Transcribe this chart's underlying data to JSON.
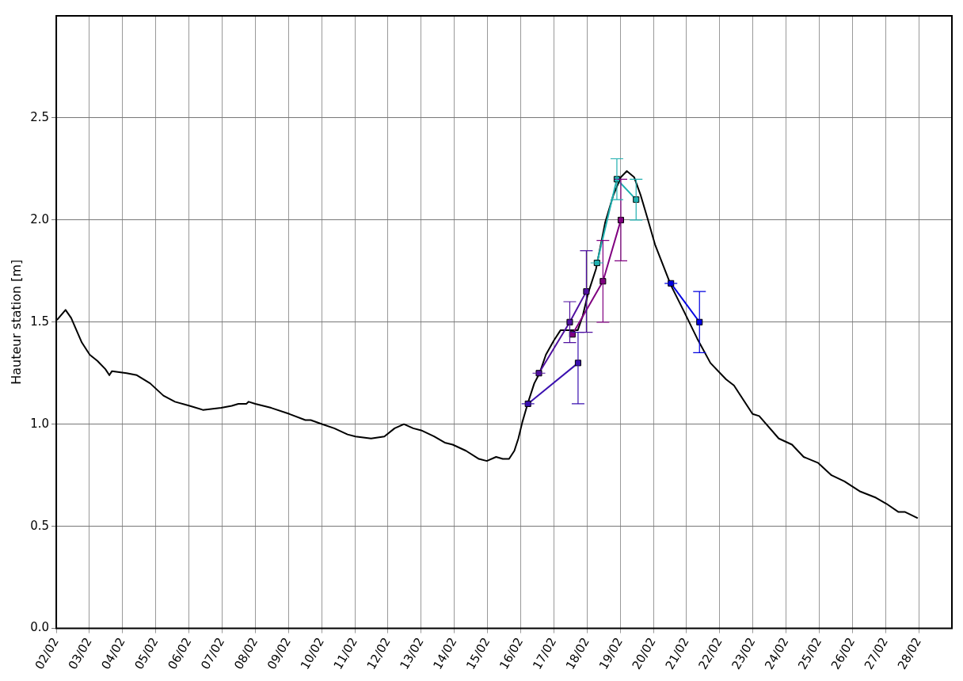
{
  "chart_data": {
    "type": "line",
    "ylabel": "Hauteur station [m]",
    "xlim": [
      "--02-02",
      "--03-01"
    ],
    "ylim": [
      0,
      3
    ],
    "xticks": [
      {
        "value": "--02-02",
        "label": "02/02"
      },
      {
        "value": "--02-03",
        "label": "03/02"
      },
      {
        "value": "--02-04",
        "label": "04/02"
      },
      {
        "value": "--02-05",
        "label": "05/02"
      },
      {
        "value": "--02-06",
        "label": "06/02"
      },
      {
        "value": "--02-07",
        "label": "07/02"
      },
      {
        "value": "--02-08",
        "label": "08/02"
      },
      {
        "value": "--02-09",
        "label": "09/02"
      },
      {
        "value": "--02-10",
        "label": "10/02"
      },
      {
        "value": "--02-11",
        "label": "11/02"
      },
      {
        "value": "--02-12",
        "label": "12/02"
      },
      {
        "value": "--02-13",
        "label": "13/02"
      },
      {
        "value": "--02-14",
        "label": "14/02"
      },
      {
        "value": "--02-15",
        "label": "15/02"
      },
      {
        "value": "--02-16",
        "label": "16/02"
      },
      {
        "value": "--02-17",
        "label": "17/02"
      },
      {
        "value": "--02-18",
        "label": "18/02"
      },
      {
        "value": "--02-19",
        "label": "19/02"
      },
      {
        "value": "--02-20",
        "label": "20/02"
      },
      {
        "value": "--02-21",
        "label": "21/02"
      },
      {
        "value": "--02-22",
        "label": "22/02"
      },
      {
        "value": "--02-23",
        "label": "23/02"
      },
      {
        "value": "--02-24",
        "label": "24/02"
      },
      {
        "value": "--02-25",
        "label": "25/02"
      },
      {
        "value": "--02-26",
        "label": "26/02"
      },
      {
        "value": "--02-27",
        "label": "27/02"
      },
      {
        "value": "--02-28",
        "label": "28/02"
      }
    ],
    "yticks": [
      {
        "value": 0,
        "label": "0.0"
      },
      {
        "value": 0.5,
        "label": "0.5"
      },
      {
        "value": 1,
        "label": "1.0"
      },
      {
        "value": 1.5,
        "label": "1.5"
      },
      {
        "value": 2,
        "label": "2.0"
      },
      {
        "value": 2.5,
        "label": "2.5"
      }
    ],
    "grid": true,
    "line_style": "solid",
    "series": [
      {
        "color": "#000000",
        "marker": "none",
        "x": [
          "--02-02T00:29",
          "--02-02T06:43",
          "--02-02T10:48",
          "--02-02T14:38",
          "--02-02T18:29",
          "--02-03T00:14",
          "--02-03T05:46",
          "--02-03T11:31",
          "--02-03T14:24",
          "--02-03T16:19",
          "--02-04T02:53",
          "--02-04T10:19",
          "--02-04T19:55",
          "--02-05T05:31",
          "--02-05T13:55",
          "--02-06T00:29",
          "--02-06T10:05",
          "--02-06T23:17",
          "--02-07T06:58",
          "--02-07T11:46",
          "--02-07T17:31",
          "--02-07T19:12",
          "--02-08T00:00",
          "--02-08T11:31",
          "--02-09T00:43",
          "--02-09T12:14",
          "--02-09T16:05",
          "--02-10T00:29",
          "--02-10T09:07",
          "--02-10T18:43",
          "--02-11T00:29",
          "--02-11T11:46",
          "--02-11T21:22",
          "--02-12T04:48",
          "--02-12T11:31",
          "--02-12T18:14",
          "--02-13T00:00",
          "--02-13T09:22",
          "--02-13T17:02",
          "--02-13T22:48",
          "--02-14T08:24",
          "--02-14T17:46",
          "--02-14T23:31",
          "--02-15T06:14",
          "--02-15T11:02",
          "--02-15T15:36",
          "--02-15T19:26",
          "--02-15T22:19",
          "--02-16T01:12",
          "--02-16T05:02",
          "--02-16T09:50",
          "--02-16T13:41",
          "--02-16T18:14",
          "--02-17T00:00",
          "--02-17T04:48",
          "--02-17T09:36",
          "--02-17T13:26",
          "--02-17T17:17",
          "--02-17T20:53",
          "--02-18T00:43",
          "--02-18T06:29",
          "--02-18T13:12",
          "--02-18T18:58",
          "--02-19T00:29",
          "--02-19T04:48",
          "--02-19T10:05",
          "--02-19T14:53",
          "--02-19T19:41",
          "--02-20T01:12",
          "--02-20T06:58",
          "--02-20T12:43",
          "--02-20T22:19",
          "--02-21T07:41",
          "--02-21T17:17",
          "--02-22T04:34",
          "--02-22T10:19",
          "--02-22T23:46",
          "--02-23T04:34",
          "--02-23T18:43",
          "--02-24T04:19",
          "--02-24T12:43",
          "--02-24T23:17",
          "--02-25T08:53",
          "--02-25T18:14",
          "--02-26T05:46",
          "--02-26T17:02",
          "--02-27T00:43",
          "--02-27T09:22",
          "--02-27T14:10",
          "--02-27T23:17"
        ],
        "values": [
          1.51,
          1.56,
          1.52,
          1.46,
          1.4,
          1.34,
          1.31,
          1.27,
          1.24,
          1.26,
          1.25,
          1.24,
          1.2,
          1.14,
          1.11,
          1.09,
          1.07,
          1.08,
          1.09,
          1.1,
          1.1,
          1.11,
          1.1,
          1.08,
          1.05,
          1.02,
          1.02,
          1,
          0.98,
          0.95,
          0.94,
          0.93,
          0.94,
          0.98,
          1,
          0.98,
          0.97,
          0.94,
          0.91,
          0.9,
          0.87,
          0.83,
          0.82,
          0.84,
          0.83,
          0.83,
          0.87,
          0.93,
          1.01,
          1.1,
          1.2,
          1.25,
          1.34,
          1.41,
          1.46,
          1.46,
          1.46,
          1.46,
          1.53,
          1.64,
          1.76,
          1.99,
          2.12,
          2.21,
          2.24,
          2.21,
          2.12,
          2.01,
          1.88,
          1.78,
          1.68,
          1.55,
          1.42,
          1.3,
          1.22,
          1.19,
          1.05,
          1.04,
          0.93,
          0.9,
          0.84,
          0.81,
          0.75,
          0.72,
          0.67,
          0.64,
          0.61,
          0.57,
          0.57,
          0.54
        ]
      },
      {
        "color": "#3a10b0",
        "marker": "square",
        "x": [
          "--02-16T05:17",
          "--02-17T17:31"
        ],
        "values": [
          1.1,
          1.3
        ],
        "errors": [
          0,
          [
            1.1,
            1.45
          ]
        ]
      },
      {
        "color": "#5010a0",
        "marker": "square",
        "x": [
          "--02-16T13:12",
          "--02-17T11:31",
          "--02-17T23:31"
        ],
        "values": [
          1.25,
          1.5,
          1.65
        ],
        "errors": [
          0,
          0.1,
          0.2
        ]
      },
      {
        "color": "#800080",
        "marker": "square",
        "x": [
          "--02-17T13:26",
          "--02-18T11:31",
          "--02-19T00:29"
        ],
        "values": [
          1.44,
          1.7,
          2.0
        ],
        "errors": [
          null,
          0.2,
          0.2
        ]
      },
      {
        "color": "#20b0b0",
        "marker": "square",
        "x": [
          "--02-18T07:12",
          "--02-18T21:36",
          "--02-19T11:31"
        ],
        "values": [
          1.79,
          2.2,
          2.1
        ],
        "errors": [
          0,
          0.1,
          0.1
        ]
      },
      {
        "color": "#0000e0",
        "marker": "square",
        "x": [
          "--02-20T12:43",
          "--02-21T09:22"
        ],
        "values": [
          1.69,
          1.5
        ],
        "errors": [
          0,
          0.15
        ]
      }
    ]
  }
}
